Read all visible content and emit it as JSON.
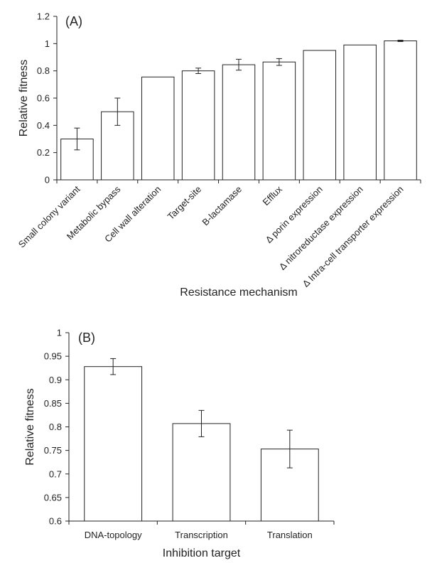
{
  "chart_data": [
    {
      "type": "bar",
      "panel_label": "(A)",
      "xlabel": "Resistance mechanism",
      "ylabel": "Relative fitness",
      "ylim": [
        0,
        1.2
      ],
      "yticks": [
        "0",
        "0.2",
        "0.4",
        "0.6",
        "0.8",
        "1",
        "1.2"
      ],
      "grid": false,
      "categories": [
        "Small colony variant",
        "Metabolic bypass",
        "Cell wall alteration",
        "Target-site",
        "B-lactamase",
        "Efflux",
        "Δ porin expression",
        "Δ nitroreductase expression",
        "Δ Intra-cell transporter expression"
      ],
      "values": [
        0.3,
        0.5,
        0.755,
        0.8,
        0.845,
        0.865,
        0.95,
        0.99,
        1.02
      ],
      "errors": [
        0.08,
        0.1,
        0,
        0.02,
        0.04,
        0.025,
        0,
        0,
        0.005
      ]
    },
    {
      "type": "bar",
      "panel_label": "(B)",
      "xlabel": "Inhibition target",
      "ylabel": "Relative fitness",
      "ylim": [
        0.6,
        1.0
      ],
      "yticks": [
        "0.6",
        "0.65",
        "0.7",
        "0.75",
        "0.8",
        "0.85",
        "0.9",
        "0.95",
        "1"
      ],
      "grid": false,
      "categories": [
        "DNA-topology",
        "Transcription",
        "Translation"
      ],
      "values": [
        0.928,
        0.807,
        0.753
      ],
      "errors": [
        0.017,
        0.028,
        0.04
      ]
    }
  ]
}
